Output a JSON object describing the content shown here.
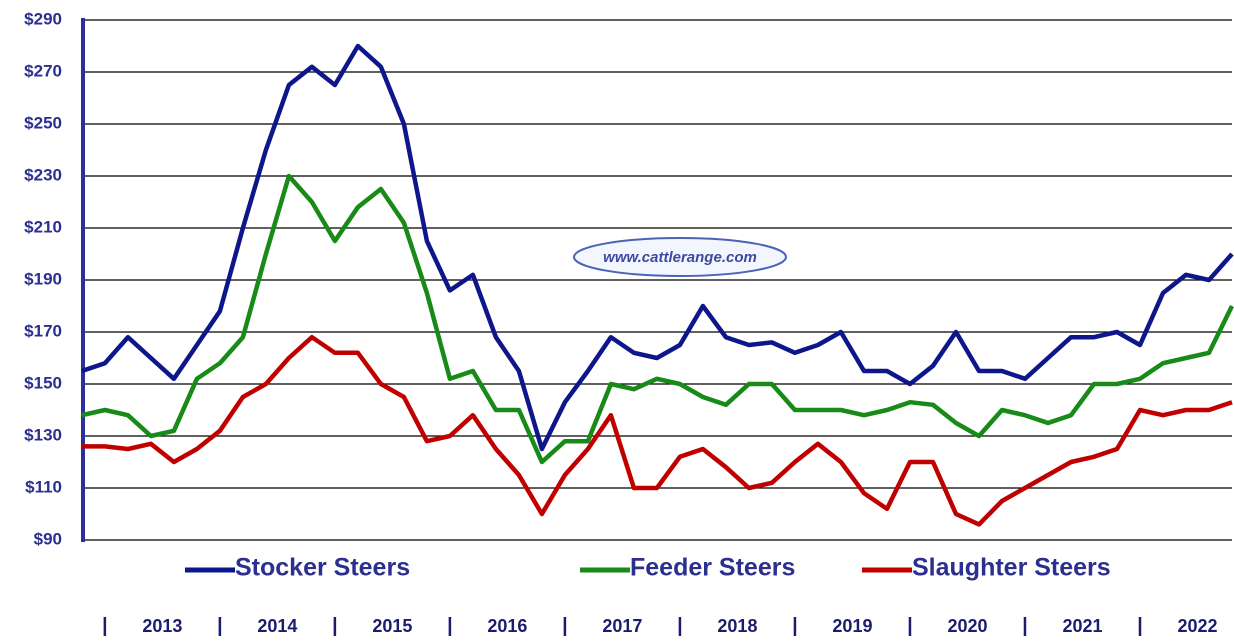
{
  "chart_data": {
    "type": "line",
    "annotation": "www.cattlerange.com",
    "x": [
      2012.8,
      2013.0,
      2013.2,
      2013.4,
      2013.6,
      2013.8,
      2014.0,
      2014.2,
      2014.4,
      2014.6,
      2014.8,
      2015.0,
      2015.2,
      2015.4,
      2015.6,
      2015.8,
      2016.0,
      2016.2,
      2016.4,
      2016.6,
      2016.8,
      2017.0,
      2017.2,
      2017.4,
      2017.6,
      2017.8,
      2018.0,
      2018.2,
      2018.4,
      2018.6,
      2018.8,
      2019.0,
      2019.2,
      2019.4,
      2019.6,
      2019.8,
      2020.0,
      2020.2,
      2020.4,
      2020.6,
      2020.8,
      2021.0,
      2021.2,
      2021.4,
      2021.6,
      2021.8,
      2022.0,
      2022.2,
      2022.4,
      2022.6,
      2022.8
    ],
    "series": [
      {
        "name": "Stocker Steers",
        "color": "#0d168a",
        "values": [
          155,
          158,
          168,
          160,
          152,
          165,
          178,
          210,
          240,
          265,
          272,
          265,
          280,
          272,
          250,
          205,
          186,
          192,
          168,
          155,
          125,
          143,
          155,
          168,
          162,
          160,
          165,
          180,
          168,
          165,
          166,
          162,
          165,
          170,
          155,
          155,
          150,
          157,
          170,
          155,
          155,
          152,
          160,
          168,
          168,
          170,
          165,
          185,
          192,
          190,
          200
        ]
      },
      {
        "name": "Feeder Steers",
        "color": "#178a17",
        "values": [
          138,
          140,
          138,
          130,
          132,
          152,
          158,
          168,
          200,
          230,
          220,
          205,
          218,
          225,
          212,
          185,
          152,
          155,
          140,
          140,
          120,
          128,
          128,
          150,
          148,
          152,
          150,
          145,
          142,
          150,
          150,
          140,
          140,
          140,
          138,
          140,
          143,
          142,
          135,
          130,
          140,
          138,
          135,
          138,
          150,
          150,
          152,
          158,
          160,
          162,
          180
        ]
      },
      {
        "name": "Slaughter Steers",
        "color": "#c00000",
        "values": [
          126,
          126,
          125,
          127,
          120,
          125,
          132,
          145,
          150,
          160,
          168,
          162,
          162,
          150,
          145,
          128,
          130,
          138,
          125,
          115,
          100,
          115,
          125,
          138,
          110,
          110,
          122,
          125,
          118,
          110,
          112,
          120,
          127,
          120,
          108,
          102,
          120,
          120,
          100,
          96,
          105,
          110,
          115,
          120,
          122,
          125,
          140,
          138,
          140,
          140,
          143
        ]
      }
    ],
    "xlim": [
      2012.81,
      2022.8
    ],
    "xticks": [
      {
        "value": 2013.5,
        "label": "2013"
      },
      {
        "value": 2014.5,
        "label": "2014"
      },
      {
        "value": 2015.5,
        "label": "2015"
      },
      {
        "value": 2016.5,
        "label": "2016"
      },
      {
        "value": 2017.5,
        "label": "2017"
      },
      {
        "value": 2018.5,
        "label": "2018"
      },
      {
        "value": 2019.5,
        "label": "2019"
      },
      {
        "value": 2020.5,
        "label": "2020"
      },
      {
        "value": 2021.5,
        "label": "2021"
      },
      {
        "value": 2022.5,
        "label": "2022"
      }
    ],
    "ylim": [
      90,
      290
    ],
    "yticks": [
      {
        "value": 90,
        "label": "$90"
      },
      {
        "value": 110,
        "label": "$110"
      },
      {
        "value": 130,
        "label": "$130"
      },
      {
        "value": 150,
        "label": "$150"
      },
      {
        "value": 170,
        "label": "$170"
      },
      {
        "value": 190,
        "label": "$190"
      },
      {
        "value": 210,
        "label": "$210"
      },
      {
        "value": 230,
        "label": "$230"
      },
      {
        "value": 250,
        "label": "$250"
      },
      {
        "value": 270,
        "label": "$270"
      },
      {
        "value": 290,
        "label": "$290"
      }
    ],
    "grid": true,
    "legend": "bottom"
  }
}
